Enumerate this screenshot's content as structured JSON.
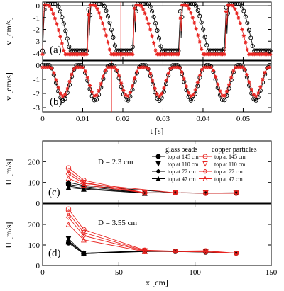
{
  "chart_data": [
    {
      "id": "a",
      "type": "line",
      "panel_label": "(a)",
      "xlabel": "",
      "ylabel": "v [cm/s]",
      "xlim": [
        0,
        0.057
      ],
      "ylim": [
        -4.6,
        0.3
      ],
      "yticks": [
        0,
        -1,
        -2,
        -3,
        -4
      ],
      "xticks": [
        0,
        0.01,
        0.02,
        0.03,
        0.04,
        0.05
      ],
      "xtick_labels_shown": false,
      "grid": false,
      "vertical_markers": [
        0.0195
      ],
      "series": [
        {
          "marker": "circle-open",
          "color": "#000000",
          "periods": [
            0.0,
            0.0115,
            0.0229,
            0.0344,
            0.0458
          ],
          "period_shape": {
            "rise_at": 0.0005,
            "peak": 0.15,
            "drop_start": 0.0035,
            "min_at": 0.0068,
            "min": -3.8
          }
        },
        {
          "marker": "star",
          "color": "#e8231f",
          "periods": [
            0.0,
            0.0115,
            0.0229,
            0.0344,
            0.0458
          ],
          "period_shape": {
            "rise_at": 0.0003,
            "peak": 0.05,
            "drop_start": 0.0015,
            "min_at": 0.0055,
            "min": -4.1
          }
        }
      ]
    },
    {
      "id": "b",
      "type": "line",
      "panel_label": "(b)",
      "xlabel": "t [s]",
      "ylabel": "v [cm/s]",
      "xlim": [
        0,
        0.057
      ],
      "ylim": [
        -3.3,
        0.3
      ],
      "yticks": [
        0,
        -1,
        -2,
        -3
      ],
      "xticks": [
        0,
        0.01,
        0.02,
        0.03,
        0.04,
        0.05
      ],
      "xtick_labels": [
        "0",
        "0.01",
        "0.02",
        "0.03",
        "0.04",
        "0.05"
      ],
      "grid": false,
      "vertical_markers": [
        0.0172,
        0.0178
      ],
      "series": [
        {
          "marker": "circle-open",
          "color": "#000000",
          "periods": [
            0.0003,
            0.0083,
            0.0163,
            0.0243,
            0.0323,
            0.0403,
            0.0483
          ],
          "period_shape": {
            "half_width": 0.0035,
            "min": -2.5,
            "base": 0.0
          }
        },
        {
          "marker": "star",
          "color": "#e8231f",
          "periods": [
            0.0003,
            0.0083,
            0.0163,
            0.0243,
            0.0323,
            0.0403,
            0.0483
          ],
          "period_shape": {
            "half_width": 0.0032,
            "min": -2.2,
            "base": -0.15
          }
        }
      ]
    },
    {
      "id": "c",
      "type": "line",
      "panel_label": "(c)",
      "annotation": "D = 2.3 cm",
      "xlabel": "",
      "ylabel": "U [m/s]",
      "xlim": [
        0,
        150
      ],
      "ylim": [
        0,
        300
      ],
      "yticks": [
        0,
        100,
        200
      ],
      "xticks": [
        0,
        50,
        100,
        150
      ],
      "xtick_labels_shown": false,
      "x": [
        17,
        27,
        67,
        87,
        107,
        127
      ],
      "series": [
        {
          "group": "glass",
          "name": "top at 145 cm",
          "marker": "circle",
          "values": [
            90,
            80,
            50,
            50,
            48,
            48
          ]
        },
        {
          "group": "glass",
          "name": "top at 110 cm",
          "marker": "triangle-down",
          "values": [
            82,
            72,
            50,
            50,
            49,
            48
          ]
        },
        {
          "group": "glass",
          "name": "top at 77 cm",
          "marker": "diamond",
          "values": [
            100,
            85,
            null,
            50,
            49,
            50
          ]
        },
        {
          "group": "glass",
          "name": "top at 47 cm",
          "marker": "triangle-up",
          "values": [
            75,
            68,
            48,
            null,
            null,
            null
          ]
        },
        {
          "group": "copper",
          "name": "top at 145 cm",
          "marker": "circle",
          "values": [
            170,
            110,
            50,
            50,
            48,
            48
          ]
        },
        {
          "group": "copper",
          "name": "top at 110 cm",
          "marker": "triangle-down",
          "values": [
            155,
            100,
            49,
            50,
            49,
            48
          ]
        },
        {
          "group": "copper",
          "name": "top at 77 cm",
          "marker": "diamond",
          "values": [
            140,
            95,
            null,
            50,
            49,
            50
          ]
        },
        {
          "group": "copper",
          "name": "top at 47 cm",
          "marker": "triangle-up",
          "values": [
            120,
            88,
            50,
            null,
            null,
            null
          ]
        }
      ],
      "legend": {
        "glass_title": "glass beads",
        "copper_title": "copper particles",
        "entries": [
          "top at 145 cm",
          "top at 110 cm",
          "top at 77 cm",
          "top at 47 cm"
        ]
      }
    },
    {
      "id": "d",
      "type": "line",
      "panel_label": "(d)",
      "annotation": "D = 3.55 cm",
      "xlabel": "x [cm]",
      "ylabel": "U [m/s]",
      "xlim": [
        0,
        150
      ],
      "ylim": [
        0,
        300
      ],
      "yticks": [
        0,
        100,
        200
      ],
      "xticks": [
        0,
        50,
        100,
        150
      ],
      "xtick_labels": [
        "0",
        "50",
        "100",
        "150"
      ],
      "x": [
        17,
        27,
        67,
        87,
        107,
        127
      ],
      "series": [
        {
          "group": "glass",
          "name": "top at 145 cm",
          "marker": "circle",
          "values": [
            110,
            57,
            70,
            68,
            65,
            60
          ]
        },
        {
          "group": "glass",
          "name": "top at 110 cm",
          "marker": "triangle-down",
          "values": [
            130,
            60,
            72,
            68,
            66,
            60
          ]
        },
        {
          "group": "glass",
          "name": "top at 77 cm",
          "marker": "diamond",
          "values": [
            120,
            58,
            68,
            68,
            67,
            60
          ]
        },
        {
          "group": "glass",
          "name": "top at 47 cm",
          "marker": "triangle-up",
          "values": [
            115,
            60,
            70,
            null,
            null,
            null
          ]
        },
        {
          "group": "copper",
          "name": "top at 145 cm",
          "marker": "circle",
          "values": [
            275,
            175,
            75,
            70,
            72,
            60
          ]
        },
        {
          "group": "copper",
          "name": "top at 110 cm",
          "marker": "triangle-down",
          "values": [
            255,
            160,
            72,
            69,
            68,
            60
          ]
        },
        {
          "group": "copper",
          "name": "top at 77 cm",
          "marker": "diamond",
          "values": [
            235,
            145,
            70,
            68,
            66,
            60
          ]
        },
        {
          "group": "copper",
          "name": "top at 47 cm",
          "marker": "triangle-up",
          "values": [
            200,
            125,
            68,
            null,
            null,
            null
          ]
        }
      ]
    }
  ],
  "colors": {
    "red": "#e8231f",
    "black": "#000000"
  }
}
